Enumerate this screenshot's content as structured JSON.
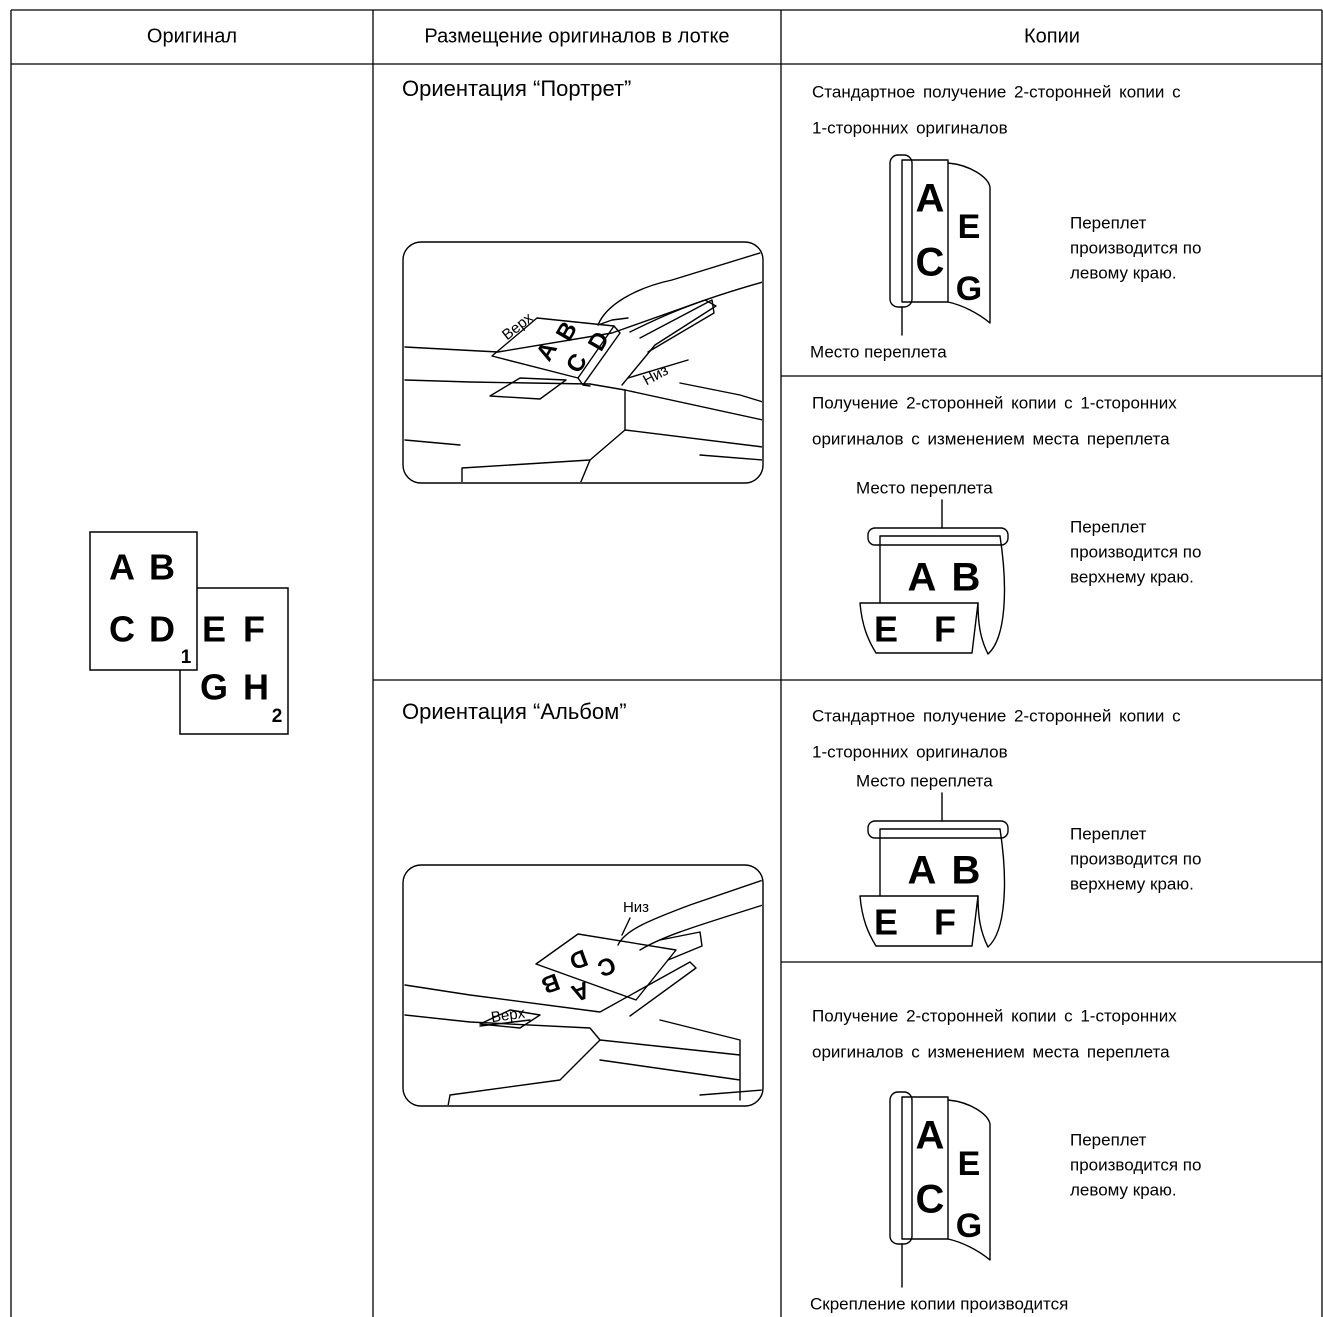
{
  "table": {
    "headers": [
      "Оригинал",
      "Размещение оригиналов в лотке",
      "Копии"
    ],
    "original": {
      "pages": [
        {
          "letters": [
            "A",
            "B",
            "C",
            "D"
          ],
          "number": "1"
        },
        {
          "letters": [
            "E",
            "F",
            "G",
            "H"
          ],
          "number": "2"
        }
      ]
    },
    "rows": [
      {
        "orientation": "Ориентация “Портрет”",
        "tray": {
          "letters": [
            "A",
            "B",
            "C",
            "D"
          ],
          "top_label": "Верх",
          "bottom_label": "Низ"
        },
        "copies": [
          {
            "description": [
              "Стандартное получение 2-сторонней копии с",
              "1-сторонних оригиналов"
            ],
            "binding_label": "Место переплета",
            "front_letters": [
              "A",
              "C"
            ],
            "back_letters": [
              "E",
              "G"
            ],
            "note": [
              "Переплет",
              "производится по",
              "левому краю."
            ]
          },
          {
            "description": [
              "Получение 2-сторонней копии с 1-сторонних",
              "оригиналов с изменением места переплета"
            ],
            "binding_label": "Место переплета",
            "front_letters": [
              "A",
              "B"
            ],
            "back_letters": [
              "E",
              "F"
            ],
            "note": [
              "Переплет",
              "производится по",
              "верхнему краю."
            ]
          }
        ]
      },
      {
        "orientation": "Ориентация “Альбом”",
        "tray": {
          "letters": [
            "A",
            "B",
            "C",
            "D"
          ],
          "top_label": "Верх",
          "bottom_label": "Низ"
        },
        "copies": [
          {
            "description": [
              "Стандартное получение 2-сторонней копии с",
              "1-сторонних оригиналов"
            ],
            "binding_label": "Место переплета",
            "front_letters": [
              "A",
              "B"
            ],
            "back_letters": [
              "E",
              "F"
            ],
            "note": [
              "Переплет",
              "производится по",
              "верхнему краю."
            ]
          },
          {
            "description": [
              "Получение 2-сторонней копии с 1-сторонних",
              "оригиналов с изменением места переплета"
            ],
            "binding_label": "Скрепление копии производится",
            "front_letters": [
              "A",
              "C"
            ],
            "back_letters": [
              "E",
              "G"
            ],
            "note": [
              "Переплет",
              "производится по",
              "левому краю."
            ]
          }
        ]
      }
    ]
  }
}
